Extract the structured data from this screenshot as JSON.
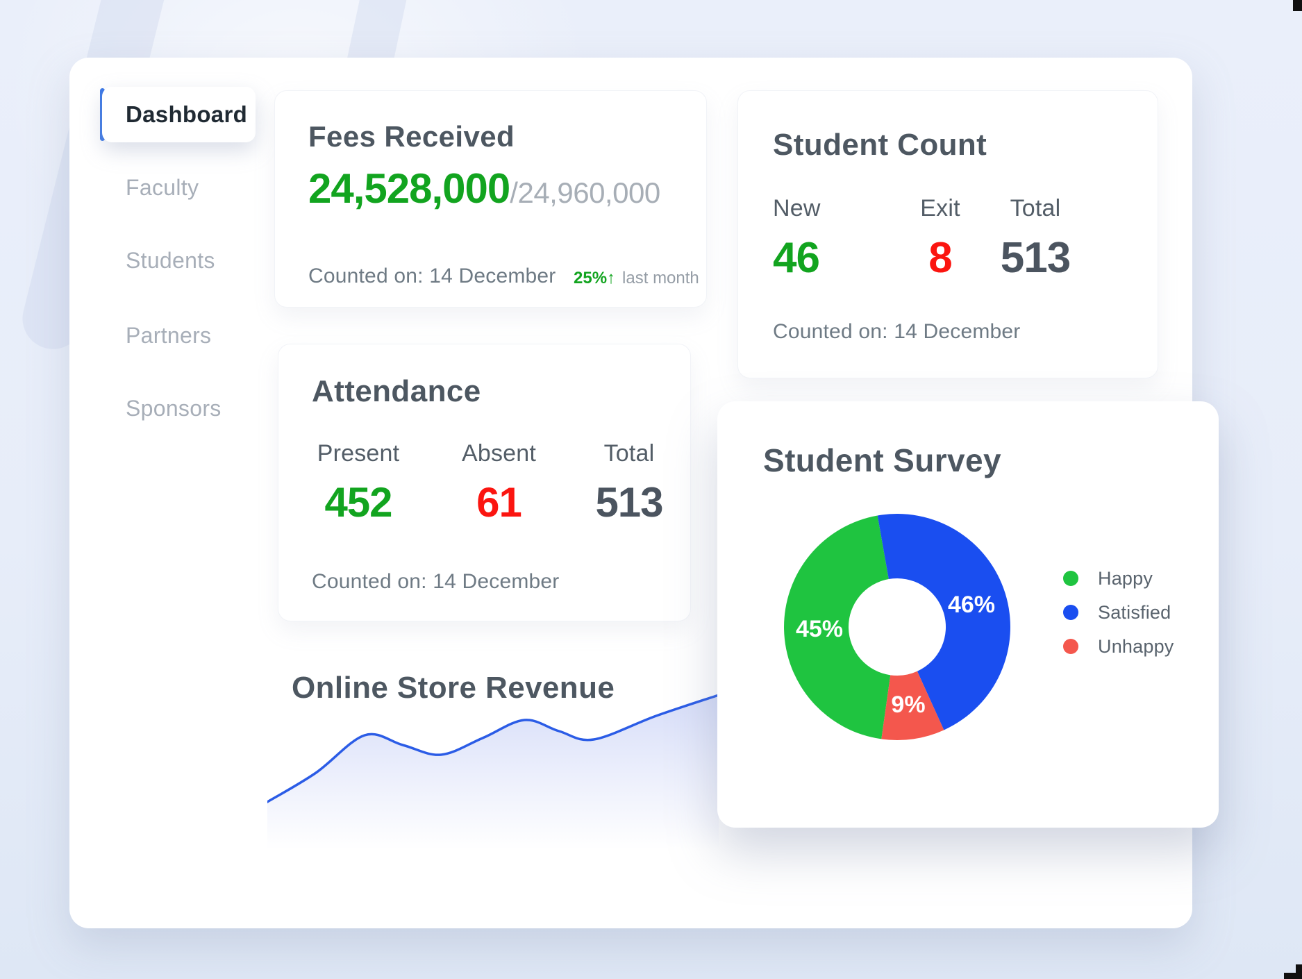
{
  "colors": {
    "positive": "#12a41f",
    "negative": "#fb1510",
    "neutral_dark": "#4b545f",
    "accent_blue": "#3b78e7",
    "line_blue": "#2b5ce6"
  },
  "sidebar": {
    "items": [
      {
        "label": "Dashboard",
        "active": true
      },
      {
        "label": "Faculty",
        "active": false
      },
      {
        "label": "Students",
        "active": false
      },
      {
        "label": "Partners",
        "active": false
      },
      {
        "label": "Sponsors",
        "active": false
      }
    ]
  },
  "fees_card": {
    "title": "Fees Received",
    "amount": "24,528,000",
    "amount_total": "/24,960,000",
    "counted_on": "Counted on: 14 December",
    "trend": "25%↑",
    "trend_suffix": "last month"
  },
  "student_count_card": {
    "title": "Student Count",
    "columns": [
      {
        "label": "New",
        "value": "46",
        "color": "positive"
      },
      {
        "label": "Exit",
        "value": "8",
        "color": "negative"
      },
      {
        "label": "Total",
        "value": "513",
        "color": "neutral_dark"
      }
    ],
    "counted_on": "Counted on: 14 December"
  },
  "attendance_card": {
    "title": "Attendance",
    "columns": [
      {
        "label": "Present",
        "value": "452",
        "color": "positive"
      },
      {
        "label": "Absent",
        "value": "61",
        "color": "negative"
      },
      {
        "label": "Total",
        "value": "513",
        "color": "neutral_dark"
      }
    ],
    "counted_on": "Counted on: 14 December"
  },
  "revenue_section": {
    "title": "Online Store Revenue"
  },
  "survey_card": {
    "title": "Student Survey"
  },
  "chart_data": [
    {
      "type": "pie",
      "subtype": "doughnut",
      "title": "Student Survey",
      "segments": [
        {
          "label": "Happy",
          "value": 45,
          "color": "#1fc440"
        },
        {
          "label": "Satisfied",
          "value": 46,
          "color": "#1a4ef0"
        },
        {
          "label": "Unhappy",
          "value": 9,
          "color": "#f4574d"
        }
      ],
      "data_labels": [
        "45%",
        "46%",
        "9%"
      ],
      "start_angle_deg": 188,
      "inner_radius_ratio": 0.43,
      "legend_position": "right"
    },
    {
      "type": "line",
      "title": "Online Store Revenue",
      "x": [
        0,
        70,
        140,
        195,
        250,
        310,
        370,
        420,
        470,
        560,
        650
      ],
      "values": [
        108,
        150,
        204,
        190,
        176,
        200,
        226,
        210,
        198,
        232,
        262
      ],
      "axes_shown": false,
      "line_color": "#2b5ce6",
      "area_fill": "fade-to-transparent",
      "note": "decorative sparkline, no axis labels visible; values estimated from curve height"
    }
  ]
}
